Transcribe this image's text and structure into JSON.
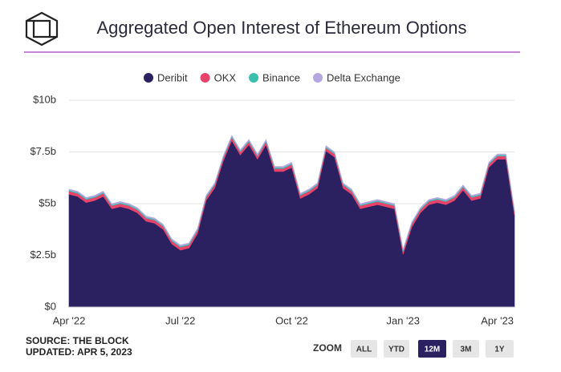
{
  "chart_data": {
    "type": "stacked_area",
    "title": "Aggregated Open Interest of Ethereum Options",
    "categories": [
      "Apr '22",
      null,
      null,
      null,
      null,
      null,
      null,
      null,
      null,
      null,
      null,
      null,
      null,
      "Jul '22",
      null,
      null,
      null,
      null,
      null,
      null,
      null,
      null,
      null,
      null,
      null,
      null,
      "Oct '22",
      null,
      null,
      null,
      null,
      null,
      null,
      null,
      null,
      null,
      null,
      null,
      null,
      "Jan '23",
      null,
      null,
      null,
      null,
      null,
      null,
      null,
      null,
      null,
      null,
      "Apr '23",
      null,
      null
    ],
    "series": [
      {
        "name": "Deribit",
        "color": "#2b2161",
        "values": [
          5.45,
          5.35,
          5.05,
          5.15,
          5.35,
          4.75,
          4.85,
          4.75,
          4.55,
          4.15,
          4.05,
          3.75,
          3.05,
          2.75,
          2.85,
          3.55,
          5.15,
          5.75,
          7.05,
          8.05,
          7.35,
          7.85,
          7.15,
          7.85,
          6.55,
          6.55,
          6.75,
          5.25,
          5.45,
          5.75,
          7.55,
          7.25,
          5.75,
          5.45,
          4.75,
          4.85,
          4.95,
          4.85,
          4.75,
          2.55,
          3.85,
          4.55,
          4.95,
          5.05,
          4.95,
          5.15,
          5.65,
          5.15,
          5.25,
          6.75,
          7.15,
          7.15,
          4.45
        ]
      },
      {
        "name": "OKX",
        "color": "#e8436b",
        "values": [
          0.15,
          0.15,
          0.15,
          0.15,
          0.15,
          0.15,
          0.15,
          0.15,
          0.15,
          0.15,
          0.15,
          0.15,
          0.15,
          0.15,
          0.15,
          0.15,
          0.15,
          0.15,
          0.15,
          0.15,
          0.15,
          0.15,
          0.15,
          0.15,
          0.15,
          0.15,
          0.15,
          0.15,
          0.15,
          0.15,
          0.15,
          0.15,
          0.15,
          0.15,
          0.15,
          0.15,
          0.15,
          0.15,
          0.15,
          0.15,
          0.15,
          0.15,
          0.15,
          0.15,
          0.15,
          0.15,
          0.15,
          0.15,
          0.15,
          0.15,
          0.15,
          0.15,
          0.15
        ]
      },
      {
        "name": "Binance",
        "color": "#3bbfad",
        "values": [
          0.05,
          0.05,
          0.05,
          0.05,
          0.05,
          0.05,
          0.05,
          0.05,
          0.05,
          0.05,
          0.05,
          0.05,
          0.05,
          0.05,
          0.05,
          0.05,
          0.05,
          0.05,
          0.05,
          0.05,
          0.05,
          0.05,
          0.05,
          0.05,
          0.05,
          0.05,
          0.05,
          0.05,
          0.05,
          0.05,
          0.05,
          0.05,
          0.05,
          0.05,
          0.05,
          0.05,
          0.05,
          0.05,
          0.05,
          0.05,
          0.05,
          0.05,
          0.05,
          0.05,
          0.05,
          0.05,
          0.05,
          0.05,
          0.05,
          0.05,
          0.05,
          0.05,
          0.05
        ]
      },
      {
        "name": "Delta Exchange",
        "color": "#b4a7e0",
        "values": [
          0.05,
          0.05,
          0.05,
          0.05,
          0.05,
          0.05,
          0.05,
          0.05,
          0.05,
          0.05,
          0.05,
          0.05,
          0.05,
          0.05,
          0.05,
          0.05,
          0.05,
          0.05,
          0.05,
          0.05,
          0.05,
          0.05,
          0.05,
          0.05,
          0.05,
          0.05,
          0.05,
          0.05,
          0.05,
          0.05,
          0.05,
          0.05,
          0.05,
          0.05,
          0.05,
          0.05,
          0.05,
          0.05,
          0.05,
          0.05,
          0.05,
          0.05,
          0.05,
          0.05,
          0.05,
          0.05,
          0.05,
          0.05,
          0.05,
          0.05,
          0.05,
          0.05,
          0.05
        ]
      }
    ],
    "ylim": [
      0,
      10
    ],
    "yticks": [
      {
        "value": 0,
        "label": "$0"
      },
      {
        "value": 2.5,
        "label": "$2.5b"
      },
      {
        "value": 5,
        "label": "$5b"
      },
      {
        "value": 7.5,
        "label": "$7.5b"
      },
      {
        "value": 10,
        "label": "$10b"
      }
    ],
    "legend": "top"
  },
  "footer": {
    "source": "SOURCE: THE BLOCK",
    "updated": "UPDATED: APR 5, 2023"
  },
  "zoom": {
    "label": "ZOOM",
    "buttons": [
      "ALL",
      "YTD",
      "12M",
      "3M",
      "1Y"
    ],
    "active": 2
  }
}
